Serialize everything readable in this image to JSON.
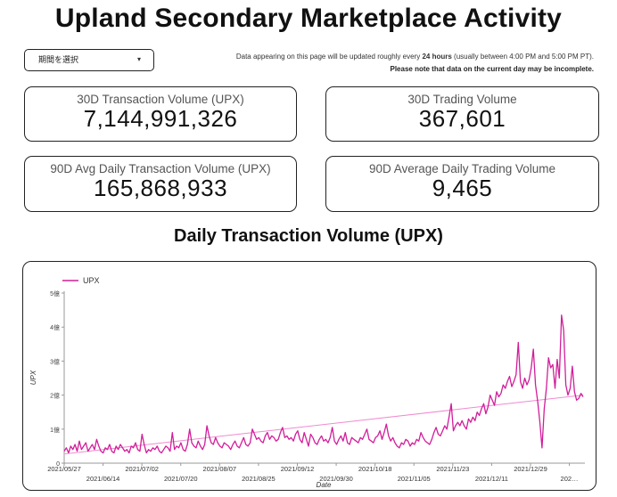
{
  "title": "Upland Secondary Marketplace Activity",
  "period_select": {
    "value": "期間を選択",
    "caret": "▾"
  },
  "notice": {
    "line1_pre": "Data appearing on this page will be updated roughly every",
    "line1_bold": "24 hours",
    "line1_post": "(usually between 4:00 PM and 5:00 PM PT).",
    "line2": "Please note that data on the current day may be incomplete."
  },
  "stats": {
    "tx_volume_30d": {
      "label": "30D Transaction Volume (UPX)",
      "value": "7,144,991,326"
    },
    "trading_volume_30d": {
      "label": "30D Trading Volume",
      "value": "367,601"
    },
    "avg_daily_tx_90d": {
      "label": "90D Avg Daily Transaction Volume (UPX)",
      "value": "165,868,933"
    },
    "avg_daily_trading_90d": {
      "label": "90D Average Daily Trading Volume",
      "value": "9,465"
    }
  },
  "chart_title": "Daily Transaction Volume (UPX)",
  "colors": {
    "series": "#d11e9a",
    "trend": "#f08ad0",
    "axis": "#888888"
  },
  "chart_data": {
    "type": "line",
    "title": "Daily Transaction Volume (UPX)",
    "xlabel": "Date",
    "ylabel": "UPX",
    "ylim": [
      0,
      5
    ],
    "y_unit": "億",
    "y_ticks": [
      "0",
      "1億",
      "2億",
      "3億",
      "4億",
      "5億"
    ],
    "x_ticks_top": [
      "2021/05/27",
      "2021/07/02",
      "2021/08/07",
      "2021/09/12",
      "2021/10/18",
      "2021/11/23",
      "2021/12/29"
    ],
    "x_ticks_bottom": [
      "2021/06/14",
      "2021/07/20",
      "2021/08/25",
      "2021/09/30",
      "2021/11/05",
      "2021/12/11",
      "202…"
    ],
    "legend": "UPX",
    "legend_position": "top-left",
    "trend": {
      "name": "trend",
      "start": 0.27,
      "end": 2.0
    },
    "series": [
      {
        "name": "UPX",
        "values": [
          0.35,
          0.45,
          0.3,
          0.5,
          0.4,
          0.55,
          0.35,
          0.65,
          0.4,
          0.5,
          0.6,
          0.35,
          0.45,
          0.55,
          0.4,
          0.7,
          0.5,
          0.35,
          0.3,
          0.45,
          0.4,
          0.55,
          0.35,
          0.3,
          0.5,
          0.4,
          0.55,
          0.45,
          0.35,
          0.4,
          0.3,
          0.5,
          0.45,
          0.6,
          0.4,
          0.35,
          0.85,
          0.55,
          0.3,
          0.4,
          0.35,
          0.45,
          0.4,
          0.5,
          0.35,
          0.3,
          0.4,
          0.5,
          0.45,
          0.35,
          0.9,
          0.4,
          0.5,
          0.45,
          0.6,
          0.4,
          0.35,
          0.55,
          1.0,
          0.6,
          0.5,
          0.45,
          0.65,
          0.5,
          0.4,
          0.55,
          1.1,
          0.8,
          0.6,
          0.55,
          0.75,
          0.6,
          0.5,
          0.45,
          0.6,
          0.55,
          0.5,
          0.4,
          0.55,
          0.65,
          0.5,
          0.45,
          0.6,
          0.75,
          0.55,
          0.5,
          0.6,
          1.0,
          0.85,
          0.7,
          0.75,
          0.65,
          0.6,
          0.8,
          0.9,
          0.7,
          0.8,
          0.75,
          0.65,
          0.7,
          0.9,
          1.05,
          0.75,
          0.8,
          0.7,
          0.75,
          0.65,
          0.85,
          0.95,
          0.7,
          0.6,
          0.9,
          0.7,
          0.5,
          0.85,
          0.75,
          0.6,
          0.55,
          0.7,
          0.8,
          0.65,
          0.7,
          0.6,
          0.75,
          1.05,
          0.65,
          0.55,
          0.7,
          0.8,
          0.65,
          0.9,
          0.6,
          0.55,
          0.75,
          0.7,
          0.65,
          0.6,
          0.75,
          0.7,
          0.85,
          1.0,
          0.7,
          0.65,
          0.6,
          0.75,
          0.8,
          0.95,
          0.7,
          0.9,
          1.15,
          0.8,
          0.65,
          0.75,
          0.6,
          0.5,
          0.45,
          0.6,
          0.55,
          0.7,
          0.65,
          0.5,
          0.6,
          0.55,
          0.7,
          0.65,
          0.9,
          0.75,
          0.65,
          0.6,
          0.55,
          0.7,
          0.9,
          1.05,
          0.85,
          0.8,
          0.95,
          1.1,
          1.0,
          1.35,
          1.75,
          0.95,
          1.1,
          1.2,
          1.1,
          1.25,
          1.1,
          1.0,
          1.3,
          1.2,
          1.35,
          1.25,
          1.5,
          1.4,
          1.6,
          1.75,
          1.45,
          1.65,
          2.0,
          1.85,
          1.7,
          2.1,
          1.95,
          2.05,
          2.3,
          2.2,
          2.4,
          2.55,
          2.25,
          2.4,
          2.6,
          3.55,
          2.4,
          2.2,
          2.5,
          2.3,
          2.45,
          2.8,
          3.35,
          2.3,
          1.8,
          1.2,
          0.45,
          1.6,
          2.2,
          3.1,
          2.8,
          2.9,
          2.2,
          3.05,
          2.5,
          4.35,
          3.9,
          2.3,
          2.0,
          2.2,
          2.85,
          2.1,
          1.85,
          1.9,
          2.05,
          1.95
        ]
      }
    ]
  }
}
